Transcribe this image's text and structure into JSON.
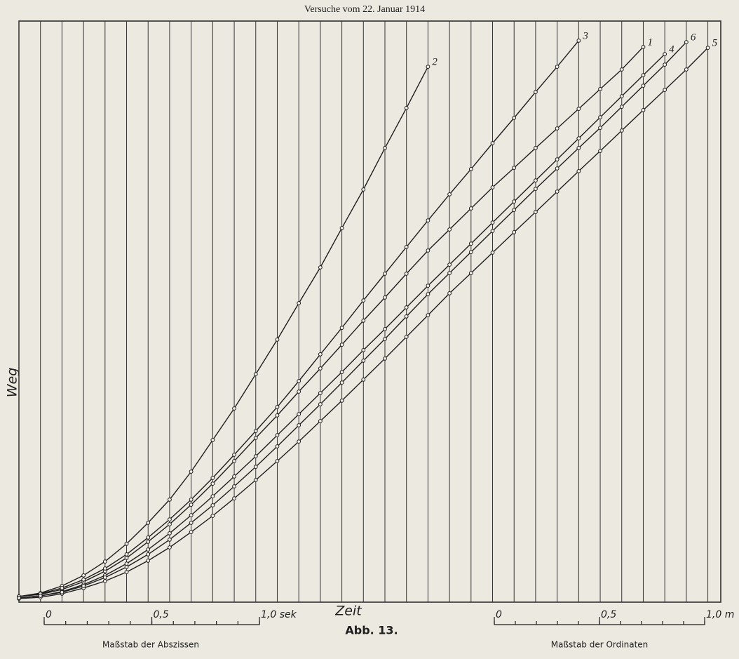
{
  "chart_data": {
    "type": "line",
    "title": "Versuche vom 22. Januar 1914",
    "y_label": "Weg",
    "x_label": "Zeit",
    "caption": "Abb. 13.",
    "xlim": [
      0,
      3.26
    ],
    "ylim": [
      0,
      2.75
    ],
    "x": [
      0,
      0.1,
      0.2,
      0.3,
      0.4,
      0.5,
      0.6,
      0.7,
      0.8,
      0.9,
      1.0,
      1.1,
      1.2,
      1.3,
      1.4,
      1.5,
      1.6,
      1.7,
      1.8,
      1.9,
      2.0,
      2.1,
      2.2,
      2.3,
      2.4,
      2.5,
      2.6,
      2.7,
      2.8,
      2.9,
      3.0,
      3.1,
      3.2
    ],
    "series": [
      {
        "name": "1",
        "color": "#1e1e1e",
        "values": [
          0.017,
          0.027,
          0.05,
          0.087,
          0.137,
          0.2,
          0.277,
          0.36,
          0.453,
          0.553,
          0.66,
          0.77,
          0.877,
          0.99,
          1.1,
          1.213,
          1.327,
          1.437,
          1.55,
          1.66,
          1.76,
          1.86,
          1.96,
          2.053,
          2.147,
          2.24,
          2.333,
          2.427,
          2.52,
          2.627,
          null,
          null,
          null
        ]
      },
      {
        "name": "2",
        "color": "#1e1e1e",
        "values": [
          0.017,
          0.033,
          0.067,
          0.117,
          0.183,
          0.267,
          0.367,
          0.477,
          0.61,
          0.76,
          0.91,
          1.073,
          1.237,
          1.41,
          1.58,
          1.767,
          1.95,
          2.147,
          2.337,
          2.533,
          null,
          null,
          null,
          null,
          null,
          null,
          null,
          null,
          null,
          null,
          null,
          null,
          null
        ]
      },
      {
        "name": "3",
        "color": "#1e1e1e",
        "values": [
          0.017,
          0.03,
          0.057,
          0.097,
          0.15,
          0.217,
          0.297,
          0.383,
          0.477,
          0.58,
          0.69,
          0.803,
          0.917,
          1.04,
          1.167,
          1.293,
          1.423,
          1.55,
          1.677,
          1.803,
          1.927,
          2.047,
          2.17,
          2.29,
          2.413,
          2.533,
          2.657,
          null,
          null,
          null,
          null,
          null,
          null
        ]
      },
      {
        "name": "4",
        "color": "#1e1e1e",
        "values": [
          0.01,
          0.02,
          0.04,
          0.073,
          0.117,
          0.173,
          0.24,
          0.317,
          0.403,
          0.493,
          0.587,
          0.683,
          0.783,
          0.883,
          0.983,
          1.083,
          1.187,
          1.287,
          1.39,
          1.493,
          1.593,
          1.693,
          1.793,
          1.893,
          1.993,
          2.093,
          2.193,
          2.293,
          2.393,
          2.493,
          2.593,
          null,
          null
        ]
      },
      {
        "name": "5",
        "color": "#1e1e1e",
        "values": [
          0.007,
          0.013,
          0.03,
          0.057,
          0.09,
          0.133,
          0.187,
          0.25,
          0.323,
          0.4,
          0.483,
          0.57,
          0.66,
          0.753,
          0.85,
          0.947,
          1.047,
          1.147,
          1.25,
          1.353,
          1.457,
          1.553,
          1.65,
          1.747,
          1.843,
          1.94,
          2.037,
          2.133,
          2.23,
          2.327,
          2.423,
          2.52,
          2.623
        ]
      },
      {
        "name": "6",
        "color": "#1e1e1e",
        "values": [
          0.01,
          0.02,
          0.037,
          0.067,
          0.107,
          0.157,
          0.217,
          0.287,
          0.367,
          0.45,
          0.54,
          0.633,
          0.73,
          0.83,
          0.93,
          1.033,
          1.137,
          1.24,
          1.347,
          1.453,
          1.553,
          1.653,
          1.753,
          1.853,
          1.953,
          2.05,
          2.147,
          2.243,
          2.343,
          2.443,
          2.543,
          2.65,
          null
        ]
      }
    ],
    "x_scale": {
      "label": "Maßstab der Abszissen",
      "ticks": [
        {
          "value": 0,
          "label": "0"
        },
        {
          "value": 0.5,
          "label": "0,5"
        },
        {
          "value": 1,
          "label": "1,0 sek"
        }
      ]
    },
    "y_scale": {
      "label": "Maßstab der Ordinaten",
      "ticks": [
        {
          "value": 0,
          "label": "0"
        },
        {
          "value": 0.5,
          "label": "0,5"
        },
        {
          "value": 1,
          "label": "1,0 m"
        }
      ]
    }
  }
}
